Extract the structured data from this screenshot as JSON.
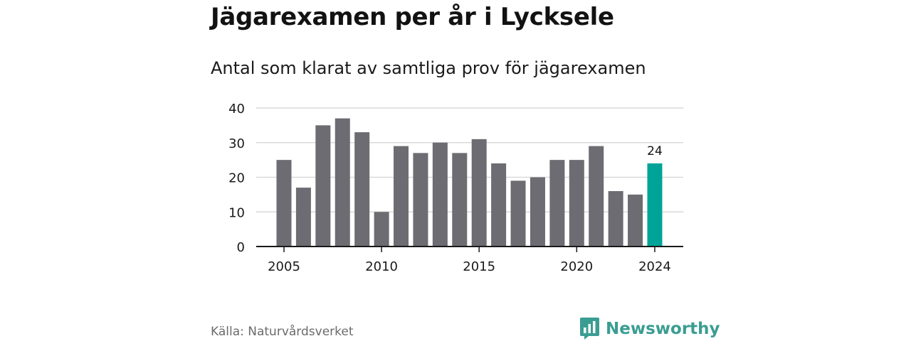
{
  "title": "Jägarexamen per år i Lycksele",
  "subtitle": "Antal som klarat av samtliga prov för jägarexamen",
  "source": "Källa: Naturvårdsverket",
  "brand": {
    "name": "Newsworthy",
    "icon": "newsworthy-logo-icon",
    "color": "#3a9d92"
  },
  "chart_data": {
    "type": "bar",
    "x": [
      2005,
      2006,
      2007,
      2008,
      2009,
      2010,
      2011,
      2012,
      2013,
      2014,
      2015,
      2016,
      2017,
      2018,
      2019,
      2020,
      2021,
      2022,
      2023,
      2024
    ],
    "values": [
      25,
      17,
      35,
      37,
      33,
      10,
      29,
      27,
      30,
      27,
      31,
      24,
      19,
      20,
      25,
      25,
      29,
      16,
      15,
      24
    ],
    "xticks": [
      "2005",
      "2010",
      "2015",
      "2020",
      "2024"
    ],
    "yticks": [
      0,
      10,
      20,
      30,
      40
    ],
    "ylim": [
      0,
      40
    ],
    "grid": true,
    "highlight": {
      "x": 2024,
      "label": "24",
      "color": "#00a398"
    },
    "bar_color": "#6d6c72"
  }
}
